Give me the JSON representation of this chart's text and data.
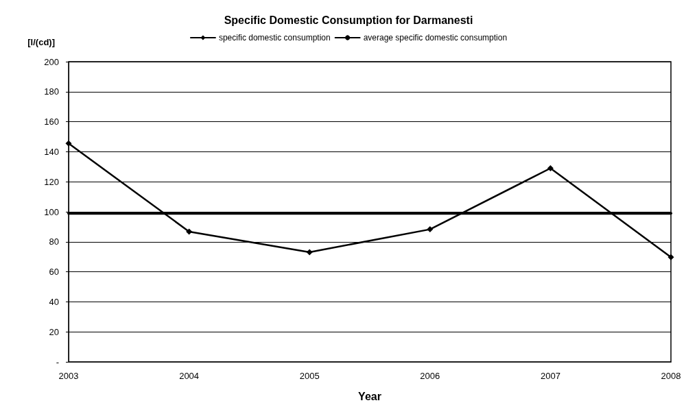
{
  "chart_data": {
    "type": "line",
    "title": "Specific Domestic Consumption for Darmanesti",
    "xlabel": "Year",
    "ylabel": "[l/(cd)]",
    "x": [
      2003,
      2004,
      2005,
      2006,
      2007,
      2008
    ],
    "series": [
      {
        "name": "specific domestic consumption",
        "color": "#000000",
        "values": [
          145.5,
          86.8,
          73.1,
          88.3,
          129,
          69.7
        ],
        "marker": "diamond"
      },
      {
        "name": "average specific domestic consumption",
        "color": "#000000",
        "x": [
          2003,
          2008
        ],
        "values": [
          99,
          99
        ],
        "marker": "none"
      }
    ],
    "xlim": [
      2003,
      2008
    ],
    "xticks": [
      2003,
      2004,
      2005,
      2006,
      2007,
      2008
    ],
    "ylim": [
      0,
      200
    ],
    "yticks": [
      {
        "value": 0,
        "label": "-"
      },
      20,
      40,
      60,
      80,
      100,
      120,
      140,
      160,
      180,
      200
    ],
    "grid": "y",
    "legend": "top",
    "line_style": "solid"
  }
}
